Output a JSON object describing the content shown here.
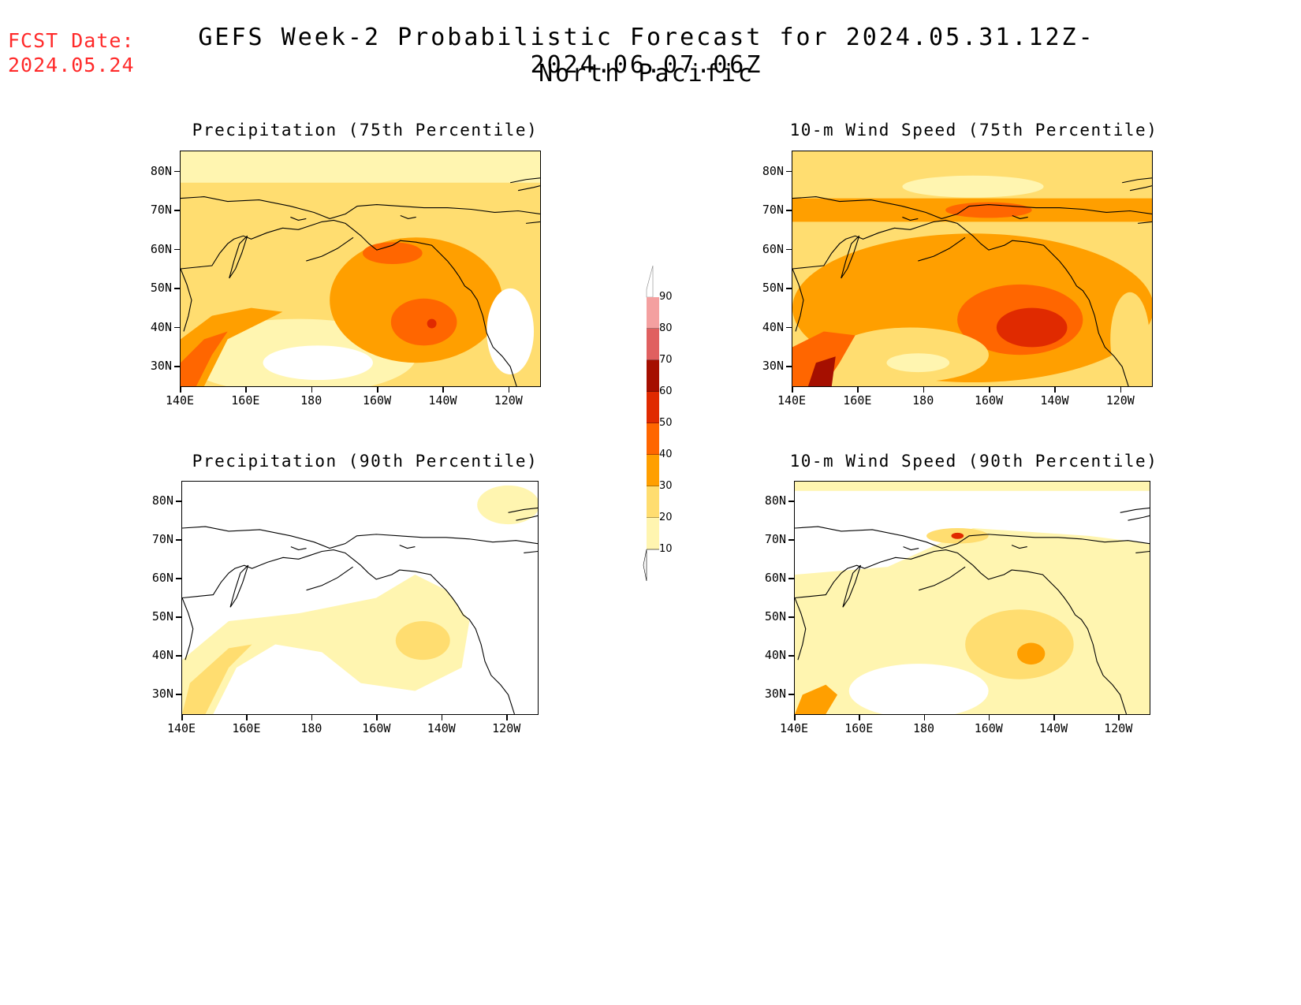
{
  "header": {
    "fcst_label": "FCST Date:",
    "fcst_date": "2024.05.24",
    "title": "GEFS Week-2 Probabilistic Forecast for 2024.05.31.12Z-2024.06.07.06Z",
    "region": "North Pacific"
  },
  "panels": [
    {
      "title": "Precipitation (75th Percentile)",
      "intensity": 1.0,
      "kind": "precip75"
    },
    {
      "title": "10-m Wind Speed (75th Percentile)",
      "intensity": 1.0,
      "kind": "wind75"
    },
    {
      "title": "Precipitation (90th Percentile)",
      "intensity": 0.45,
      "kind": "precip90"
    },
    {
      "title": "10-m Wind Speed (90th Percentile)",
      "intensity": 0.55,
      "kind": "wind90"
    }
  ],
  "axes": {
    "lat_labels": [
      "80N",
      "70N",
      "60N",
      "50N",
      "40N",
      "30N"
    ],
    "lon_labels": [
      "140E",
      "160E",
      "180",
      "160W",
      "140W",
      "120W"
    ]
  },
  "colorbar": {
    "levels": [
      "90",
      "80",
      "70",
      "60",
      "50",
      "40",
      "30",
      "20",
      "10"
    ],
    "colors": [
      "#ffffff",
      "#f4a0a0",
      "#e06060",
      "#a50f00",
      "#e02a00",
      "#ff6600",
      "#ff9f00",
      "#ffdd70",
      "#fff5b0"
    ]
  },
  "chart_data": {
    "type": "heatmap",
    "variable_units": "probability (%)",
    "levels": [
      10,
      20,
      30,
      40,
      50,
      60,
      70,
      80,
      90
    ],
    "lat_range": [
      25,
      85
    ],
    "lon_range": [
      "140E",
      "110W"
    ]
  }
}
